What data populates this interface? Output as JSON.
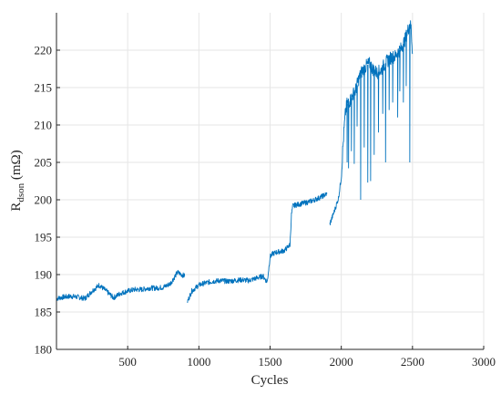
{
  "chart_data": {
    "type": "line",
    "title": "",
    "xlabel": "Cycles",
    "ylabel": {
      "main": "R",
      "sub": "dson",
      "unit": " (mΩ)"
    },
    "xlim": [
      0,
      3000
    ],
    "ylim": [
      180,
      225
    ],
    "xticks": [
      500,
      1000,
      1500,
      2000,
      2500,
      3000
    ],
    "yticks": [
      180,
      185,
      190,
      195,
      200,
      205,
      210,
      215,
      220
    ],
    "grid": true,
    "legend": "none",
    "line_color": "#0072bd",
    "series": [
      {
        "segments": [
          {
            "x": [
              0,
              50,
              100,
              150,
              200,
              250,
              300,
              350,
              400,
              450,
              500,
              550,
              600,
              650,
              700,
              750,
              800,
              850,
              900
            ],
            "y": [
              186.8,
              187.0,
              187.1,
              187.0,
              186.8,
              187.8,
              188.6,
              187.8,
              186.9,
              187.5,
              187.8,
              188.0,
              188.0,
              188.2,
              188.2,
              188.3,
              188.8,
              190.3,
              189.8
            ]
          },
          {
            "x": [
              920,
              950,
              1000,
              1050,
              1100,
              1150,
              1200,
              1250,
              1300,
              1350,
              1400,
              1450,
              1480,
              1500,
              1520,
              1550,
              1600,
              1640,
              1650,
              1660,
              1700,
              1750,
              1800,
              1850,
              1900
            ],
            "y": [
              186.4,
              187.8,
              188.6,
              188.9,
              189.1,
              189.2,
              189.1,
              189.2,
              189.3,
              189.2,
              189.5,
              189.8,
              189.0,
              192.4,
              192.8,
              193.0,
              193.2,
              194.0,
              198.0,
              199.2,
              199.4,
              199.6,
              199.9,
              200.3,
              200.8
            ]
          },
          {
            "x": [
              1920,
              1950,
              1980,
              2000,
              2010,
              2020,
              2030,
              2040,
              2060,
              2080,
              2100,
              2120,
              2140,
              2160,
              2180,
              2200,
              2220,
              2250,
              2280,
              2300,
              2320,
              2350,
              2380,
              2400,
              2420,
              2450,
              2470,
              2480,
              2490,
              2500
            ],
            "y": [
              196.8,
              198.4,
              200.2,
              203.0,
              206.5,
              209.5,
              211.8,
              212.8,
              213.2,
              214.0,
              214.6,
              216.0,
              217.0,
              217.5,
              218.0,
              218.2,
              217.5,
              217.0,
              217.3,
              218.0,
              218.5,
              219.0,
              219.2,
              219.8,
              220.2,
              221.5,
              222.8,
              223.5,
              223.0,
              219.5
            ]
          }
        ],
        "dips": [
          {
            "x": 2040,
            "y": 205.0
          },
          {
            "x": 2050,
            "y": 204.2
          },
          {
            "x": 2070,
            "y": 206.5
          },
          {
            "x": 2090,
            "y": 204.8
          },
          {
            "x": 2110,
            "y": 209.8
          },
          {
            "x": 2135,
            "y": 200.0
          },
          {
            "x": 2160,
            "y": 207.0
          },
          {
            "x": 2185,
            "y": 202.3
          },
          {
            "x": 2205,
            "y": 202.5
          },
          {
            "x": 2230,
            "y": 206.0
          },
          {
            "x": 2260,
            "y": 209.0
          },
          {
            "x": 2290,
            "y": 211.5
          },
          {
            "x": 2310,
            "y": 205.0
          },
          {
            "x": 2335,
            "y": 212.0
          },
          {
            "x": 2360,
            "y": 213.0
          },
          {
            "x": 2395,
            "y": 211.0
          },
          {
            "x": 2410,
            "y": 214.5
          },
          {
            "x": 2435,
            "y": 213.0
          },
          {
            "x": 2455,
            "y": 215.2
          },
          {
            "x": 2480,
            "y": 205.0
          }
        ]
      }
    ]
  }
}
